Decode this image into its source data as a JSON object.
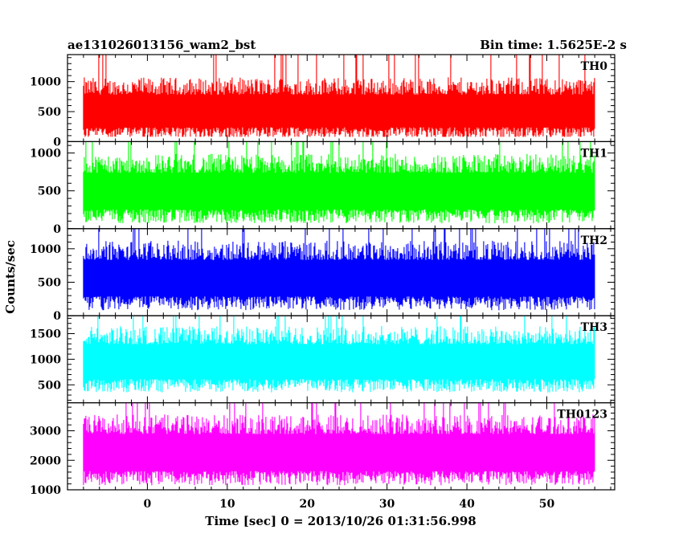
{
  "title_left": "ae131026013156_wam2_bst",
  "title_right": "Bin time: 1.5625E-2 s",
  "xlabel": "Time [sec] 0 = 2013/10/26 01:31:56.998",
  "ylabel": "Counts/sec",
  "chart_data": {
    "type": "line",
    "title": "ae131026013156_wam2_bst",
    "xlabel": "Time [sec] 0 = 2013/10/26 01:31:56.998",
    "ylabel": "Counts/sec",
    "xlim": [
      -10,
      58.5
    ],
    "x_ticks": [
      0,
      10,
      20,
      30,
      40,
      50
    ],
    "x_data_range": [
      -8,
      56
    ],
    "bin_time_s": 0.015625,
    "panels": [
      {
        "name": "TH0",
        "color": "#ff0000",
        "ylim": [
          0,
          1450
        ],
        "yticks": [
          0,
          500,
          1000
        ],
        "baseline": 550,
        "spread": 520,
        "min": 80,
        "max": 1450
      },
      {
        "name": "TH1",
        "color": "#00ff00",
        "ylim": [
          0,
          1150
        ],
        "yticks": [
          0,
          500,
          1000
        ],
        "baseline": 530,
        "spread": 460,
        "min": 60,
        "max": 1150
      },
      {
        "name": "TH2",
        "color": "#0000ff",
        "ylim": [
          0,
          1300
        ],
        "yticks": [
          0,
          500,
          1000
        ],
        "baseline": 600,
        "spread": 520,
        "min": 60,
        "max": 1300
      },
      {
        "name": "TH3",
        "color": "#00ffff",
        "ylim": [
          150,
          1850
        ],
        "yticks": [
          500,
          1000,
          1500
        ],
        "baseline": 1000,
        "spread": 650,
        "min": 250,
        "max": 1850
      },
      {
        "name": "TH0123",
        "color": "#ff00ff",
        "ylim": [
          1000,
          3950
        ],
        "yticks": [
          1000,
          2000,
          3000
        ],
        "baseline": 2350,
        "spread": 1200,
        "min": 1050,
        "max": 3950
      }
    ]
  }
}
